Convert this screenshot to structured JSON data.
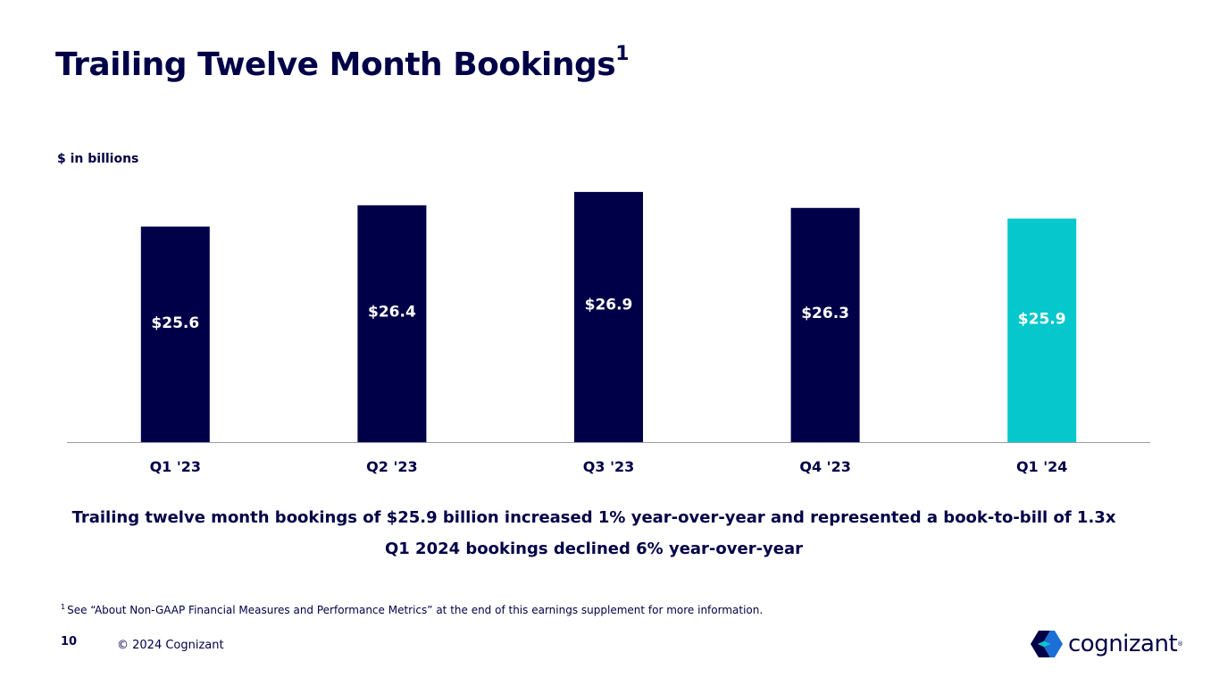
{
  "title": {
    "text": "Trailing Twelve Month Bookings",
    "superscript": "1"
  },
  "unit_label": "$ in billions",
  "summary": {
    "line1": "Trailing twelve month bookings of $25.9 billion increased 1% year-over-year and represented a book-to-bill of 1.3x",
    "line2": "Q1 2024 bookings declined 6% year-over-year"
  },
  "footnote": {
    "marker": "1",
    "text": "See “About Non-GAAP Financial Measures and Performance Metrics” at the end of this earnings supplement for more information."
  },
  "footer": {
    "page_number": "10",
    "copyright": "© 2024 Cognizant"
  },
  "logo": {
    "text": "cognizant",
    "registered": "®"
  },
  "colors": {
    "navy": "#000048",
    "teal": "#06C7CC",
    "axis": "#9b9bab"
  },
  "chart_data": {
    "type": "bar",
    "title": "Trailing Twelve Month Bookings",
    "ylabel": "$ in billions",
    "xlabel": "",
    "categories": [
      "Q1 '23",
      "Q2 '23",
      "Q3 '23",
      "Q4 '23",
      "Q1 '24"
    ],
    "values": [
      25.6,
      26.4,
      26.9,
      26.3,
      25.9
    ],
    "value_labels": [
      "$25.6",
      "$26.4",
      "$26.9",
      "$26.3",
      "$25.9"
    ],
    "highlight_index": 4,
    "ylim": [
      17.5,
      27.4
    ],
    "grid": false,
    "legend": "none"
  }
}
